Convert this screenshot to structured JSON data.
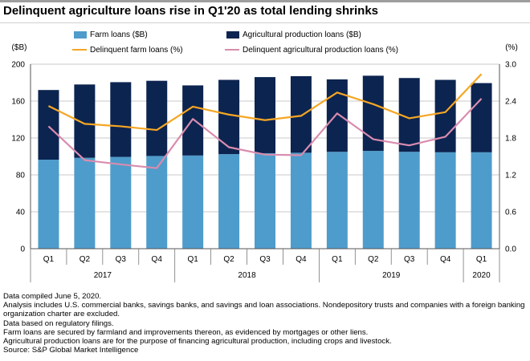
{
  "title": "Delinquent agriculture loans rise in Q1'20 as total lending shrinks",
  "notes": [
    "Data compiled June 5, 2020.",
    "Analysis includes U.S. commercial banks, savings banks, and savings and loan associations. Nondepository trusts and companies with a foreign banking organization charter are excluded.",
    "Data based on regulatory filings.",
    "Farm loans are secured by farmland and improvements thereon, as evidenced by mortgages or other liens.",
    "Agricultural production loans are for the purpose of financing agricultural production, including crops and livestock.",
    "Source: S&P Global Market Intelligence"
  ],
  "colors": {
    "farm_loans": "#4e9ccb",
    "ag_production_loans": "#0c2450",
    "delinquent_farm": "#f5a623",
    "delinquent_ag_production": "#d98cae"
  },
  "chart_data": {
    "type": "bar",
    "stacked": true,
    "title": "Delinquent agriculture loans rise in Q1'20 as total lending shrinks",
    "categories": [
      "Q1",
      "Q2",
      "Q3",
      "Q4",
      "Q1",
      "Q2",
      "Q3",
      "Q4",
      "Q1",
      "Q2",
      "Q3",
      "Q4",
      "Q1"
    ],
    "year_groups": [
      {
        "label": "2017",
        "count": 4
      },
      {
        "label": "2018",
        "count": 4
      },
      {
        "label": "2019",
        "count": 4
      },
      {
        "label": "2020",
        "count": 1
      }
    ],
    "ylabel_left": "($B)",
    "ylabel_right": "(%)",
    "ylim_left": [
      0,
      200
    ],
    "yticks_left": [
      "0",
      "40",
      "80",
      "120",
      "160",
      "200"
    ],
    "ylim_right": [
      0,
      3.0
    ],
    "yticks_right": [
      "0.0",
      "0.6",
      "1.2",
      "1.8",
      "2.4",
      "3.0"
    ],
    "legend_position": "top",
    "series": [
      {
        "name": "Farm loans ($B)",
        "kind": "bar",
        "axis": "left",
        "values": [
          96.5,
          98.5,
          99.5,
          100.5,
          101,
          102.5,
          103.5,
          104,
          105,
          106,
          105,
          104.5,
          104.5
        ]
      },
      {
        "name": "Agricultural production loans ($B)",
        "kind": "bar",
        "axis": "left",
        "values": [
          75.5,
          79.5,
          81,
          81.5,
          76,
          80.5,
          82.5,
          83,
          78.5,
          81.5,
          80,
          78.5,
          75
        ]
      },
      {
        "name": "Delinquent farm loans (%)",
        "kind": "line",
        "axis": "right",
        "values": [
          2.32,
          2.03,
          1.99,
          1.93,
          2.31,
          2.18,
          2.09,
          2.16,
          2.54,
          2.35,
          2.12,
          2.22,
          2.84
        ]
      },
      {
        "name": "Delinquent agricultural production loans (%)",
        "kind": "line",
        "axis": "right",
        "values": [
          1.99,
          1.44,
          1.37,
          1.31,
          2.11,
          1.65,
          1.53,
          1.52,
          2.2,
          1.78,
          1.68,
          1.82,
          2.44
        ]
      }
    ]
  }
}
